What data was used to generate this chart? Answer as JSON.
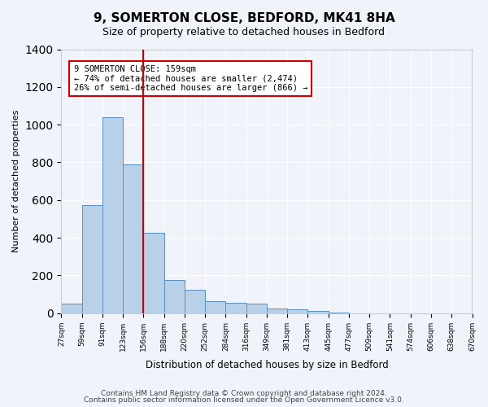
{
  "title1": "9, SOMERTON CLOSE, BEDFORD, MK41 8HA",
  "title2": "Size of property relative to detached houses in Bedford",
  "xlabel": "Distribution of detached houses by size in Bedford",
  "ylabel": "Number of detached properties",
  "bin_labels": [
    "27sqm",
    "59sqm",
    "91sqm",
    "123sqm",
    "156sqm",
    "188sqm",
    "220sqm",
    "252sqm",
    "284sqm",
    "316sqm",
    "349sqm",
    "381sqm",
    "413sqm",
    "445sqm",
    "477sqm",
    "509sqm",
    "541sqm",
    "574sqm",
    "606sqm",
    "638sqm",
    "670sqm"
  ],
  "bar_values": [
    50,
    575,
    1040,
    790,
    425,
    178,
    125,
    65,
    55,
    50,
    25,
    20,
    10,
    5,
    0,
    0,
    0,
    0,
    0,
    0
  ],
  "bar_color": "#b8d0e8",
  "bar_edge_color": "#5a8fc0",
  "vline_x_index": 4,
  "vline_color": "#cc0000",
  "annotation_text": "9 SOMERTON CLOSE: 159sqm\n← 74% of detached houses are smaller (2,474)\n26% of semi-detached houses are larger (866) →",
  "annotation_box_color": "#ffffff",
  "annotation_box_edge_color": "#cc0000",
  "ylim": [
    0,
    1400
  ],
  "yticks": [
    0,
    200,
    400,
    600,
    800,
    1000,
    1200,
    1400
  ],
  "footnote1": "Contains HM Land Registry data © Crown copyright and database right 2024.",
  "footnote2": "Contains public sector information licensed under the Open Government Licence v3.0.",
  "bg_color": "#f0f4fa",
  "plot_bg_color": "#f0f4fa",
  "grid_color": "#ffffff"
}
